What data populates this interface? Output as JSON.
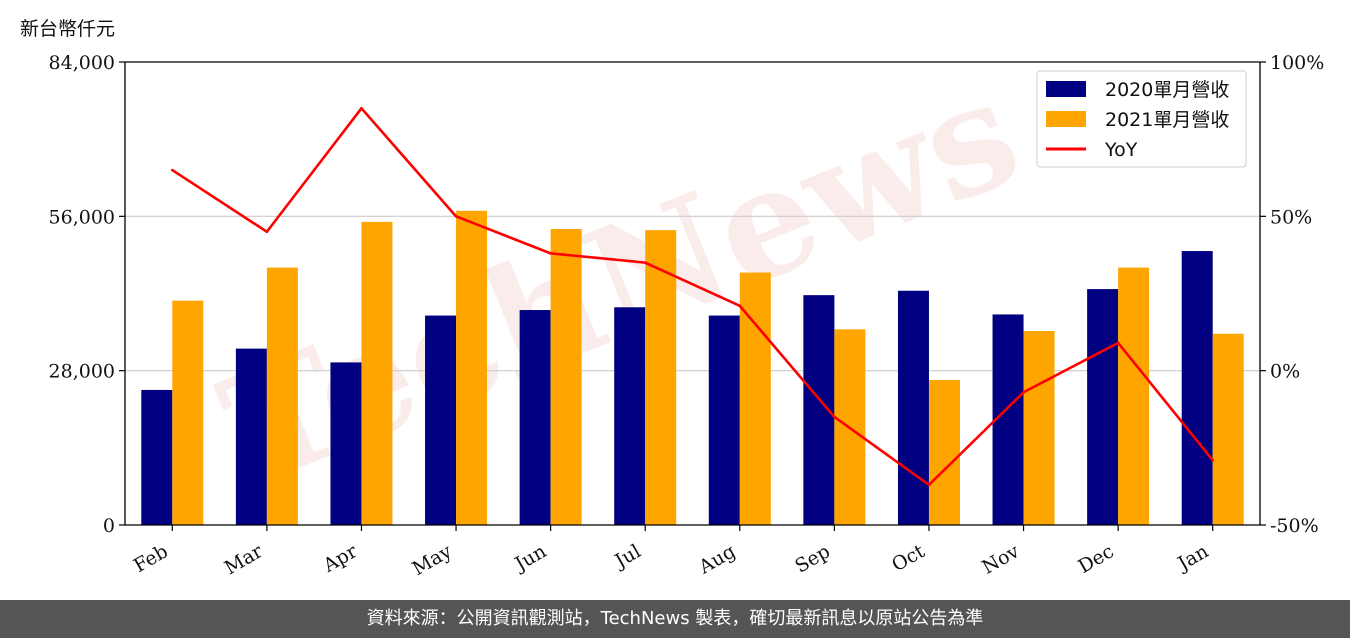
{
  "y_axis_label": "新台幣仟元",
  "footer_text": "資料來源：公開資訊觀測站，TechNews 製表，確切最新訊息以原站公告為準",
  "watermark_text": "TechNews",
  "colors": {
    "series_2020": "#000080",
    "series_2021": "#FFA500",
    "yoy": "#FF0000",
    "grid": "#cccccc",
    "footer_bg": "#555555"
  },
  "chart_data": {
    "type": "bar",
    "categories": [
      "Feb",
      "Mar",
      "Apr",
      "May",
      "Jun",
      "Jul",
      "Aug",
      "Sep",
      "Oct",
      "Nov",
      "Dec",
      "Jan"
    ],
    "series": [
      {
        "name": "2020單月營收",
        "values": [
          24500,
          32000,
          29500,
          38000,
          39000,
          39500,
          38000,
          41700,
          42500,
          38200,
          42800,
          49700
        ]
      },
      {
        "name": "2021單月營收",
        "values": [
          40700,
          46700,
          55000,
          57000,
          53700,
          53500,
          45800,
          35500,
          26300,
          35200,
          46700,
          34700
        ]
      }
    ],
    "line_series": {
      "name": "YoY",
      "values": [
        65,
        45,
        85,
        50,
        38,
        35,
        21,
        -15,
        -37,
        -7,
        9,
        -29
      ]
    },
    "ylim": [
      0,
      84000
    ],
    "y_ticks": [
      "0",
      "28,000",
      "56,000",
      "84,000"
    ],
    "y2lim": [
      -50,
      100
    ],
    "y2_ticks": [
      "-50%",
      "0%",
      "50%",
      "100%"
    ],
    "grid": true,
    "legend_position": "top-right"
  }
}
